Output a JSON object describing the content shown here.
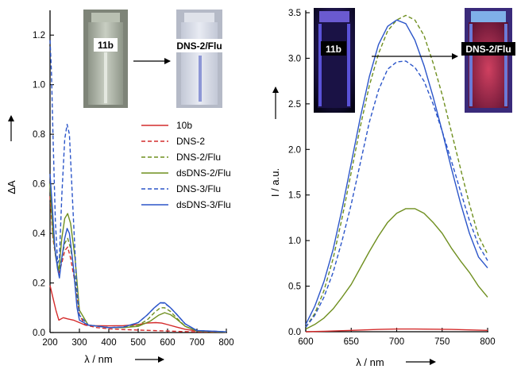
{
  "chart_data": [
    {
      "type": "line",
      "xlabel": "λ / nm",
      "ylabel": "ΔA",
      "xlim": [
        200,
        800
      ],
      "ylim": [
        0,
        1.3
      ],
      "xticks": [
        200,
        300,
        400,
        500,
        600,
        700,
        800
      ],
      "yticks": [
        0.0,
        0.2,
        0.4,
        0.6,
        0.8,
        1.0,
        1.2
      ],
      "grid": false,
      "legend_position": "right",
      "series": [
        {
          "name": "10b",
          "color": "#d42b2b",
          "dash": "solid",
          "points": [
            [
              200,
              0.19
            ],
            [
              210,
              0.14
            ],
            [
              220,
              0.09
            ],
            [
              230,
              0.05
            ],
            [
              245,
              0.06
            ],
            [
              260,
              0.055
            ],
            [
              280,
              0.05
            ],
            [
              300,
              0.04
            ],
            [
              320,
              0.03
            ],
            [
              350,
              0.028
            ],
            [
              400,
              0.027
            ],
            [
              450,
              0.028
            ],
            [
              500,
              0.032
            ],
            [
              530,
              0.038
            ],
            [
              560,
              0.04
            ],
            [
              580,
              0.038
            ],
            [
              600,
              0.032
            ],
            [
              630,
              0.022
            ],
            [
              660,
              0.013
            ],
            [
              700,
              0.006
            ],
            [
              750,
              0.003
            ],
            [
              800,
              0.002
            ]
          ]
        },
        {
          "name": "DNS-2",
          "color": "#d42b2b",
          "dash": "dash",
          "points": [
            [
              200,
              0.55
            ],
            [
              210,
              0.38
            ],
            [
              220,
              0.3
            ],
            [
              230,
              0.24
            ],
            [
              240,
              0.28
            ],
            [
              250,
              0.33
            ],
            [
              260,
              0.345
            ],
            [
              270,
              0.3
            ],
            [
              285,
              0.2
            ],
            [
              300,
              0.07
            ],
            [
              320,
              0.03
            ],
            [
              360,
              0.02
            ],
            [
              400,
              0.015
            ],
            [
              450,
              0.012
            ],
            [
              500,
              0.01
            ],
            [
              550,
              0.008
            ],
            [
              600,
              0.006
            ],
            [
              650,
              0.004
            ],
            [
              700,
              0.003
            ],
            [
              800,
              0.002
            ]
          ]
        },
        {
          "name": "DNS-2/Flu",
          "color": "#6f8f1f",
          "dash": "dash",
          "points": [
            [
              200,
              0.6
            ],
            [
              210,
              0.4
            ],
            [
              220,
              0.3
            ],
            [
              230,
              0.25
            ],
            [
              240,
              0.3
            ],
            [
              250,
              0.36
            ],
            [
              260,
              0.38
            ],
            [
              270,
              0.34
            ],
            [
              285,
              0.22
            ],
            [
              300,
              0.07
            ],
            [
              330,
              0.03
            ],
            [
              400,
              0.02
            ],
            [
              450,
              0.02
            ],
            [
              500,
              0.03
            ],
            [
              530,
              0.05
            ],
            [
              555,
              0.08
            ],
            [
              575,
              0.1
            ],
            [
              590,
              0.1
            ],
            [
              610,
              0.085
            ],
            [
              630,
              0.06
            ],
            [
              660,
              0.025
            ],
            [
              700,
              0.006
            ],
            [
              800,
              0.002
            ]
          ]
        },
        {
          "name": "dsDNS-2/Flu",
          "color": "#6f8f1f",
          "dash": "solid",
          "points": [
            [
              200,
              0.6
            ],
            [
              210,
              0.4
            ],
            [
              220,
              0.3
            ],
            [
              230,
              0.25
            ],
            [
              240,
              0.38
            ],
            [
              250,
              0.46
            ],
            [
              260,
              0.48
            ],
            [
              270,
              0.44
            ],
            [
              285,
              0.3
            ],
            [
              300,
              0.09
            ],
            [
              330,
              0.03
            ],
            [
              400,
              0.02
            ],
            [
              450,
              0.02
            ],
            [
              500,
              0.025
            ],
            [
              540,
              0.045
            ],
            [
              570,
              0.07
            ],
            [
              590,
              0.08
            ],
            [
              610,
              0.072
            ],
            [
              630,
              0.055
            ],
            [
              660,
              0.025
            ],
            [
              700,
              0.006
            ],
            [
              800,
              0.002
            ]
          ]
        },
        {
          "name": "DNS-3/Flu",
          "color": "#2b55c9",
          "dash": "dash",
          "points": [
            [
              200,
              1.18
            ],
            [
              205,
              1.05
            ],
            [
              210,
              0.8
            ],
            [
              218,
              0.45
            ],
            [
              226,
              0.28
            ],
            [
              232,
              0.3
            ],
            [
              240,
              0.55
            ],
            [
              250,
              0.78
            ],
            [
              258,
              0.84
            ],
            [
              266,
              0.8
            ],
            [
              276,
              0.55
            ],
            [
              290,
              0.2
            ],
            [
              300,
              0.07
            ],
            [
              330,
              0.03
            ],
            [
              400,
              0.02
            ],
            [
              450,
              0.022
            ],
            [
              500,
              0.04
            ],
            [
              530,
              0.07
            ],
            [
              555,
              0.1
            ],
            [
              575,
              0.12
            ],
            [
              590,
              0.118
            ],
            [
              610,
              0.1
            ],
            [
              630,
              0.075
            ],
            [
              660,
              0.035
            ],
            [
              700,
              0.008
            ],
            [
              800,
              0.003
            ]
          ]
        },
        {
          "name": "dsDNS-3/Flu",
          "color": "#2b55c9",
          "dash": "solid",
          "points": [
            [
              200,
              0.64
            ],
            [
              208,
              0.5
            ],
            [
              216,
              0.35
            ],
            [
              225,
              0.26
            ],
            [
              232,
              0.22
            ],
            [
              240,
              0.3
            ],
            [
              250,
              0.38
            ],
            [
              258,
              0.42
            ],
            [
              266,
              0.4
            ],
            [
              278,
              0.28
            ],
            [
              292,
              0.1
            ],
            [
              300,
              0.05
            ],
            [
              330,
              0.03
            ],
            [
              400,
              0.02
            ],
            [
              450,
              0.022
            ],
            [
              500,
              0.04
            ],
            [
              530,
              0.07
            ],
            [
              555,
              0.1
            ],
            [
              575,
              0.12
            ],
            [
              590,
              0.12
            ],
            [
              610,
              0.1
            ],
            [
              630,
              0.075
            ],
            [
              660,
              0.035
            ],
            [
              700,
              0.008
            ],
            [
              800,
              0.003
            ]
          ]
        }
      ]
    },
    {
      "type": "line",
      "xlabel": "λ / nm",
      "ylabel": "I / a.u.",
      "xlim": [
        600,
        800
      ],
      "ylim": [
        0,
        3.5
      ],
      "xticks": [
        600,
        650,
        700,
        750,
        800
      ],
      "yticks": [
        0.0,
        0.5,
        1.0,
        1.5,
        2.0,
        2.5,
        3.0,
        3.5
      ],
      "grid": false,
      "series": [
        {
          "name": "10b",
          "color": "#d42b2b",
          "dash": "solid",
          "points": [
            [
              600,
              0.0
            ],
            [
              620,
              0.005
            ],
            [
              650,
              0.015
            ],
            [
              680,
              0.025
            ],
            [
              700,
              0.03
            ],
            [
              720,
              0.03
            ],
            [
              740,
              0.028
            ],
            [
              760,
              0.025
            ],
            [
              780,
              0.02
            ],
            [
              800,
              0.015
            ]
          ]
        },
        {
          "name": "DNS-2/Flu",
          "color": "#6f8f1f",
          "dash": "dash",
          "points": [
            [
              600,
              0.05
            ],
            [
              610,
              0.2
            ],
            [
              620,
              0.45
            ],
            [
              630,
              0.8
            ],
            [
              640,
              1.25
            ],
            [
              650,
              1.75
            ],
            [
              660,
              2.25
            ],
            [
              670,
              2.7
            ],
            [
              680,
              3.05
            ],
            [
              690,
              3.3
            ],
            [
              700,
              3.42
            ],
            [
              710,
              3.47
            ],
            [
              720,
              3.42
            ],
            [
              730,
              3.25
            ],
            [
              740,
              2.95
            ],
            [
              750,
              2.6
            ],
            [
              760,
              2.2
            ],
            [
              770,
              1.8
            ],
            [
              780,
              1.4
            ],
            [
              790,
              1.05
            ],
            [
              800,
              0.85
            ]
          ]
        },
        {
          "name": "dsDNS-2/Flu",
          "color": "#6f8f1f",
          "dash": "solid",
          "points": [
            [
              600,
              0.03
            ],
            [
              610,
              0.08
            ],
            [
              620,
              0.15
            ],
            [
              630,
              0.25
            ],
            [
              640,
              0.38
            ],
            [
              650,
              0.52
            ],
            [
              660,
              0.7
            ],
            [
              670,
              0.88
            ],
            [
              680,
              1.05
            ],
            [
              690,
              1.2
            ],
            [
              700,
              1.3
            ],
            [
              710,
              1.35
            ],
            [
              720,
              1.35
            ],
            [
              730,
              1.3
            ],
            [
              740,
              1.2
            ],
            [
              750,
              1.08
            ],
            [
              760,
              0.92
            ],
            [
              770,
              0.78
            ],
            [
              780,
              0.65
            ],
            [
              790,
              0.5
            ],
            [
              800,
              0.38
            ]
          ]
        },
        {
          "name": "DNS-3/Flu",
          "color": "#2b55c9",
          "dash": "dash",
          "points": [
            [
              600,
              0.05
            ],
            [
              610,
              0.18
            ],
            [
              620,
              0.38
            ],
            [
              630,
              0.65
            ],
            [
              640,
              1.0
            ],
            [
              650,
              1.4
            ],
            [
              660,
              1.85
            ],
            [
              670,
              2.3
            ],
            [
              680,
              2.65
            ],
            [
              690,
              2.88
            ],
            [
              700,
              2.96
            ],
            [
              710,
              2.97
            ],
            [
              720,
              2.9
            ],
            [
              730,
              2.75
            ],
            [
              740,
              2.5
            ],
            [
              750,
              2.2
            ],
            [
              760,
              1.88
            ],
            [
              770,
              1.55
            ],
            [
              780,
              1.22
            ],
            [
              790,
              0.95
            ],
            [
              800,
              0.78
            ]
          ]
        },
        {
          "name": "dsDNS-3/Flu",
          "color": "#2b55c9",
          "dash": "solid",
          "points": [
            [
              600,
              0.08
            ],
            [
              610,
              0.28
            ],
            [
              620,
              0.55
            ],
            [
              630,
              0.9
            ],
            [
              640,
              1.35
            ],
            [
              650,
              1.85
            ],
            [
              660,
              2.35
            ],
            [
              670,
              2.8
            ],
            [
              680,
              3.15
            ],
            [
              690,
              3.35
            ],
            [
              700,
              3.42
            ],
            [
              710,
              3.38
            ],
            [
              720,
              3.2
            ],
            [
              730,
              2.92
            ],
            [
              740,
              2.58
            ],
            [
              750,
              2.2
            ],
            [
              760,
              1.8
            ],
            [
              770,
              1.42
            ],
            [
              780,
              1.08
            ],
            [
              790,
              0.82
            ],
            [
              800,
              0.7
            ]
          ]
        }
      ]
    }
  ],
  "photos": {
    "left_before_label": "11b",
    "left_after_label": "DNS-2/Flu",
    "right_before_label": "11b",
    "right_after_label": "DNS-2/Flu"
  }
}
